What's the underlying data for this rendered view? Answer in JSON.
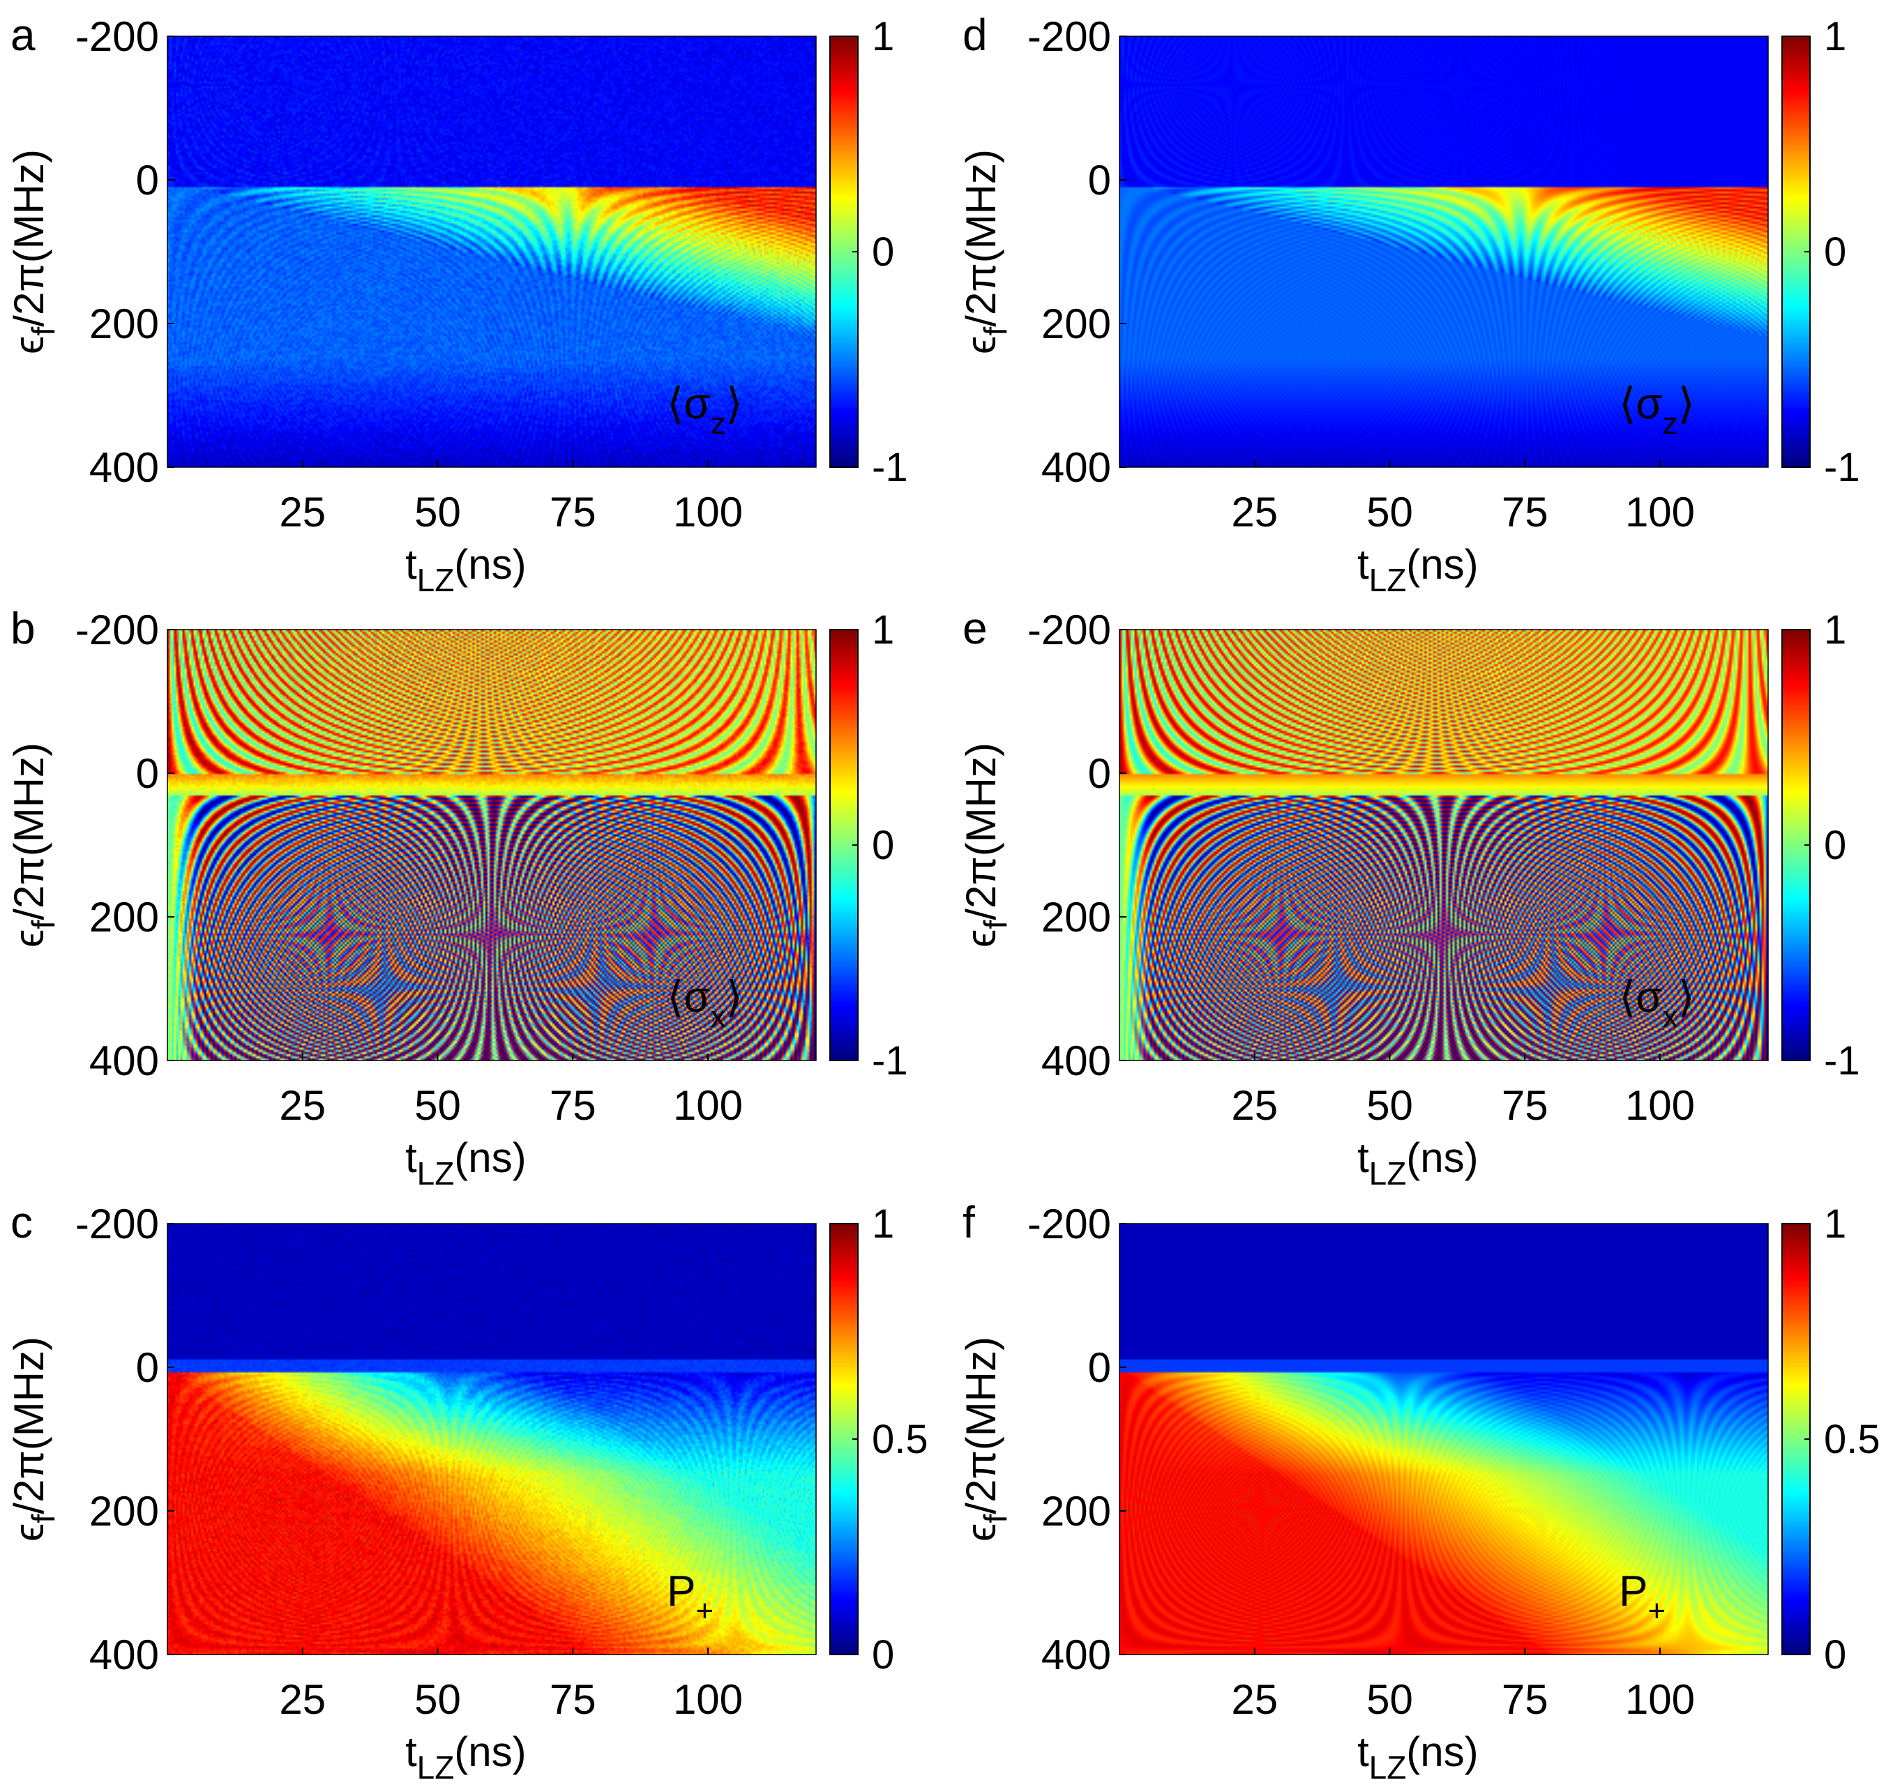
{
  "chart_data": [
    {
      "panel": "a",
      "type": "heatmap",
      "pattern": "sigma_z",
      "source": "experiment",
      "annotation": {
        "pre": "⟨σ",
        "sub": "z",
        "post": "⟩"
      },
      "xlabel": {
        "main": "t",
        "sub": "LZ",
        "rest": "(ns)"
      },
      "ylabel": {
        "main": "ϵ",
        "sub": "f",
        "rest": "/2π(MHz)"
      },
      "x_range": [
        0,
        120
      ],
      "y_range": [
        -200,
        400
      ],
      "x_ticks": [
        25,
        50,
        75,
        100
      ],
      "x_tick_labels": [
        "25",
        "50",
        "75",
        "100"
      ],
      "y_ticks": [
        -200,
        0,
        200,
        400
      ],
      "y_tick_labels": [
        "-200",
        "0",
        "200",
        "400"
      ],
      "colorbar": {
        "range": [
          -1,
          1
        ],
        "ticks": [
          1,
          0,
          -1
        ],
        "tick_labels": [
          "1",
          "0",
          "-1"
        ]
      }
    },
    {
      "panel": "b",
      "type": "heatmap",
      "pattern": "sigma_x",
      "source": "experiment",
      "annotation": {
        "pre": "⟨σ",
        "sub": "x",
        "post": "⟩"
      },
      "xlabel": {
        "main": "t",
        "sub": "LZ",
        "rest": "(ns)"
      },
      "ylabel": {
        "main": "ϵ",
        "sub": "f",
        "rest": "/2π(MHz)"
      },
      "x_range": [
        0,
        120
      ],
      "y_range": [
        -200,
        400
      ],
      "x_ticks": [
        25,
        50,
        75,
        100
      ],
      "x_tick_labels": [
        "25",
        "50",
        "75",
        "100"
      ],
      "y_ticks": [
        -200,
        0,
        200,
        400
      ],
      "y_tick_labels": [
        "-200",
        "0",
        "200",
        "400"
      ],
      "colorbar": {
        "range": [
          -1,
          1
        ],
        "ticks": [
          1,
          0,
          -1
        ],
        "tick_labels": [
          "1",
          "0",
          "-1"
        ]
      }
    },
    {
      "panel": "c",
      "type": "heatmap",
      "pattern": "p_plus",
      "source": "experiment",
      "annotation": {
        "pre": "P",
        "sub": "+",
        "post": ""
      },
      "xlabel": {
        "main": "t",
        "sub": "LZ",
        "rest": "(ns)"
      },
      "ylabel": {
        "main": "ϵ",
        "sub": "f",
        "rest": "/2π(MHz)"
      },
      "x_range": [
        0,
        120
      ],
      "y_range": [
        -200,
        400
      ],
      "x_ticks": [
        25,
        50,
        75,
        100
      ],
      "x_tick_labels": [
        "25",
        "50",
        "75",
        "100"
      ],
      "y_ticks": [
        -200,
        0,
        200,
        400
      ],
      "y_tick_labels": [
        "-200",
        "0",
        "200",
        "400"
      ],
      "colorbar": {
        "range": [
          0,
          1
        ],
        "ticks": [
          1,
          0.5,
          0
        ],
        "tick_labels": [
          "1",
          "0.5",
          "0"
        ]
      }
    },
    {
      "panel": "d",
      "type": "heatmap",
      "pattern": "sigma_z",
      "source": "simulation",
      "annotation": {
        "pre": "⟨σ",
        "sub": "z",
        "post": "⟩"
      },
      "xlabel": {
        "main": "t",
        "sub": "LZ",
        "rest": "(ns)"
      },
      "ylabel": {
        "main": "ϵ",
        "sub": "f",
        "rest": "/2π(MHz)"
      },
      "x_range": [
        0,
        120
      ],
      "y_range": [
        -200,
        400
      ],
      "x_ticks": [
        25,
        50,
        75,
        100
      ],
      "x_tick_labels": [
        "25",
        "50",
        "75",
        "100"
      ],
      "y_ticks": [
        -200,
        0,
        200,
        400
      ],
      "y_tick_labels": [
        "-200",
        "0",
        "200",
        "400"
      ],
      "colorbar": {
        "range": [
          -1,
          1
        ],
        "ticks": [
          1,
          0,
          -1
        ],
        "tick_labels": [
          "1",
          "0",
          "-1"
        ]
      }
    },
    {
      "panel": "e",
      "type": "heatmap",
      "pattern": "sigma_x",
      "source": "simulation",
      "annotation": {
        "pre": "⟨σ",
        "sub": "x",
        "post": "⟩"
      },
      "xlabel": {
        "main": "t",
        "sub": "LZ",
        "rest": "(ns)"
      },
      "ylabel": {
        "main": "ϵ",
        "sub": "f",
        "rest": "/2π(MHz)"
      },
      "x_range": [
        0,
        120
      ],
      "y_range": [
        -200,
        400
      ],
      "x_ticks": [
        25,
        50,
        75,
        100
      ],
      "x_tick_labels": [
        "25",
        "50",
        "75",
        "100"
      ],
      "y_ticks": [
        -200,
        0,
        200,
        400
      ],
      "y_tick_labels": [
        "-200",
        "0",
        "200",
        "400"
      ],
      "colorbar": {
        "range": [
          -1,
          1
        ],
        "ticks": [
          1,
          0,
          -1
        ],
        "tick_labels": [
          "1",
          "0",
          "-1"
        ]
      }
    },
    {
      "panel": "f",
      "type": "heatmap",
      "pattern": "p_plus",
      "source": "simulation",
      "annotation": {
        "pre": "P",
        "sub": "+",
        "post": ""
      },
      "xlabel": {
        "main": "t",
        "sub": "LZ",
        "rest": "(ns)"
      },
      "ylabel": {
        "main": "ϵ",
        "sub": "f",
        "rest": "/2π(MHz)"
      },
      "x_range": [
        0,
        120
      ],
      "y_range": [
        -200,
        400
      ],
      "x_ticks": [
        25,
        50,
        75,
        100
      ],
      "x_tick_labels": [
        "25",
        "50",
        "75",
        "100"
      ],
      "y_ticks": [
        -200,
        0,
        200,
        400
      ],
      "y_tick_labels": [
        "-200",
        "0",
        "200",
        "400"
      ],
      "colorbar": {
        "range": [
          0,
          1
        ],
        "ticks": [
          1,
          0.5,
          0
        ],
        "tick_labels": [
          "1",
          "0.5",
          "0"
        ]
      }
    }
  ]
}
